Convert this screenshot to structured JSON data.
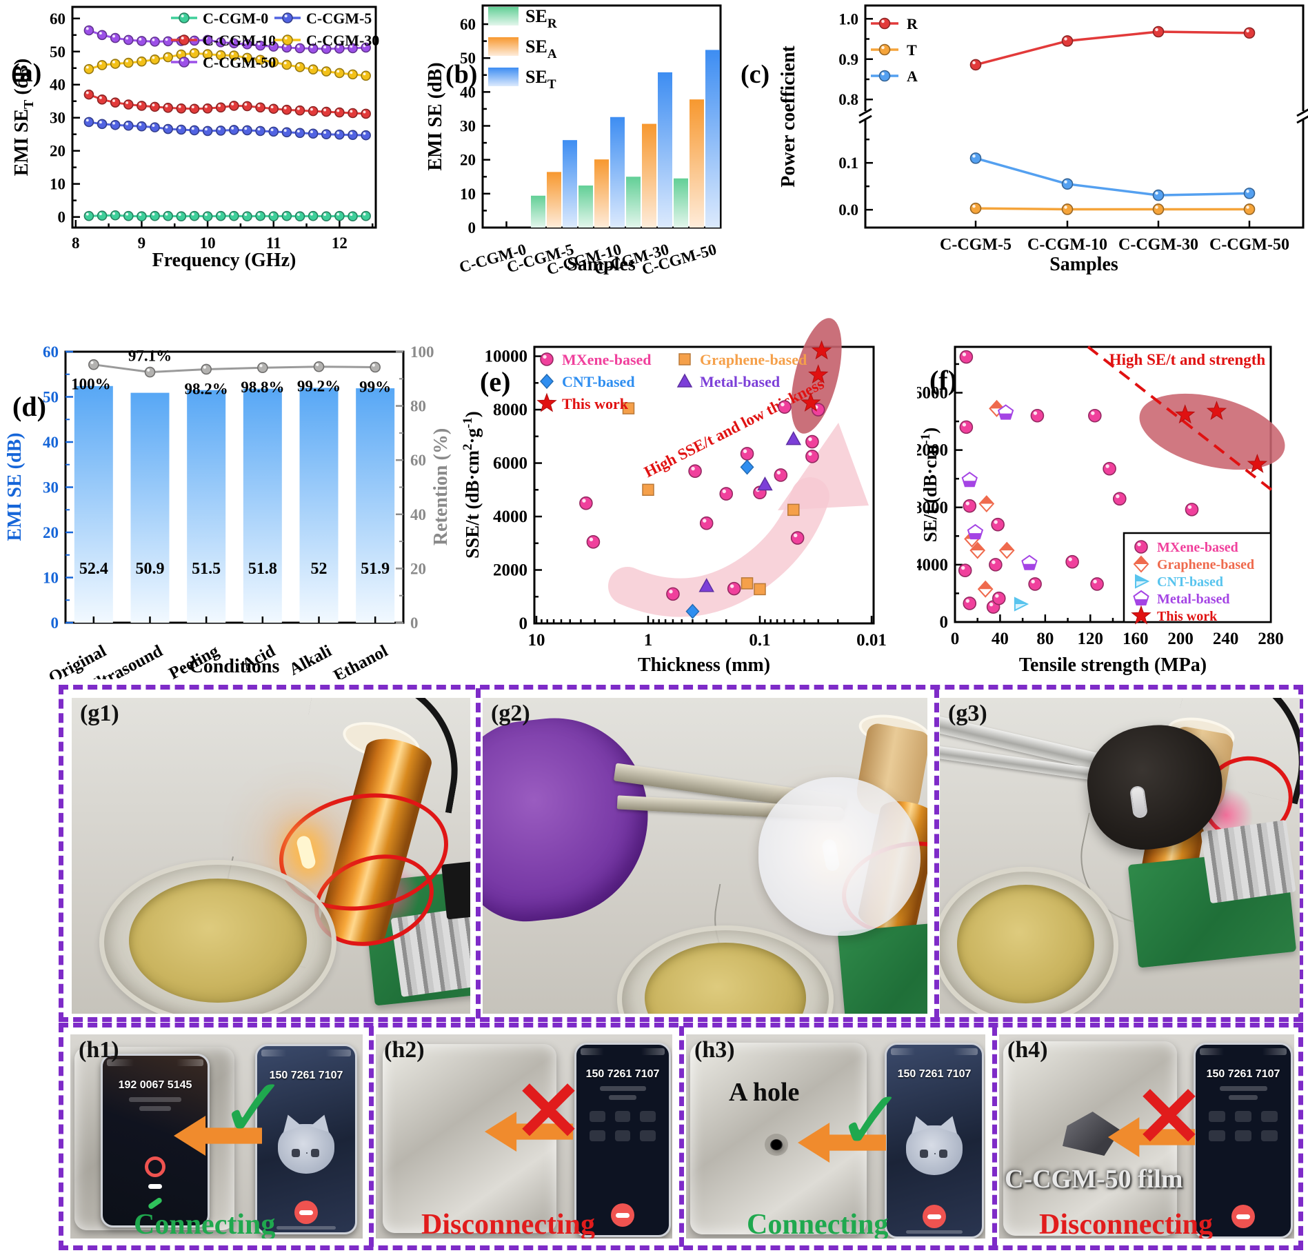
{
  "colors": {
    "connect_green": "#1fa84e",
    "disconnect_red": "#e11c1c",
    "arrow_orange": "#f08b2d",
    "border_purple": "#7e2bc8",
    "retention_gray": "#9a9a9a",
    "axis_blue": "#1565d8"
  },
  "chart_data": [
    {
      "id": "a",
      "type": "line",
      "letter": "(a)",
      "xlabel": "Frequency (GHz)",
      "ylabel": [
        {
          "t": "EMI SE"
        },
        {
          "t": "T",
          "sub": true
        },
        {
          "t": " (dB)"
        }
      ],
      "xlim": [
        7.95,
        12.55
      ],
      "ylim": [
        -3.2,
        63.5
      ],
      "xticks": [
        8,
        9,
        10,
        11,
        12
      ],
      "xticks_minor": [
        8.5,
        9.5,
        10.5,
        11.5,
        12.5
      ],
      "yticks": [
        0,
        10,
        20,
        30,
        40,
        50,
        60
      ],
      "yticks_minor": [
        5,
        15,
        25,
        35,
        45,
        55
      ],
      "x": [
        8.2,
        8.4,
        8.6,
        8.8,
        9.0,
        9.2,
        9.4,
        9.6,
        9.8,
        10.0,
        10.2,
        10.4,
        10.6,
        10.8,
        11.0,
        11.2,
        11.4,
        11.6,
        11.8,
        12.0,
        12.2,
        12.4
      ],
      "series": [
        {
          "name": "C-CGM-0",
          "color": "#3ecf9a",
          "values": [
            0.3,
            0.4,
            0.5,
            0.3,
            0.2,
            0.3,
            0.3,
            0.2,
            0.3,
            0.2,
            0.3,
            0.3,
            0.2,
            0.3,
            0.2,
            0.3,
            0.2,
            0.3,
            0.2,
            0.3,
            0.2,
            0.3
          ]
        },
        {
          "name": "C-CGM-5",
          "color": "#5163e2",
          "values": [
            28.7,
            28.1,
            27.8,
            27.6,
            27.4,
            27.1,
            26.6,
            26.4,
            26.2,
            26.0,
            26.1,
            26.3,
            26.2,
            26.0,
            25.8,
            25.6,
            25.4,
            25.2,
            25.0,
            24.9,
            24.8,
            24.7
          ]
        },
        {
          "name": "C-CGM-10",
          "color": "#e23a3a",
          "values": [
            37.0,
            35.5,
            34.6,
            34.0,
            33.6,
            33.3,
            33.0,
            32.8,
            32.7,
            32.8,
            33.1,
            33.6,
            33.5,
            33.1,
            32.7,
            32.4,
            32.2,
            32.0,
            31.8,
            31.6,
            31.4,
            31.2
          ]
        },
        {
          "name": "C-CGM-30",
          "color": "#f3c119",
          "values": [
            44.7,
            45.9,
            46.3,
            46.6,
            47.0,
            47.6,
            48.3,
            49.1,
            49.5,
            49.2,
            48.9,
            48.8,
            48.1,
            47.5,
            46.8,
            46.0,
            45.3,
            44.6,
            44.0,
            43.5,
            43.1,
            42.7
          ]
        },
        {
          "name": "C-CGM-50",
          "color": "#9c50e8",
          "values": [
            56.4,
            55.0,
            54.1,
            53.5,
            53.2,
            53.0,
            53.1,
            53.2,
            53.3,
            53.5,
            52.8,
            52.5,
            52.2,
            51.8,
            51.5,
            51.2,
            51.0,
            50.9,
            50.8,
            50.9,
            51.0,
            51.2
          ]
        }
      ]
    },
    {
      "id": "b",
      "type": "bar",
      "letter": "(b)",
      "xlabel": "Samples",
      "ylabel": [
        {
          "t": "EMI SE (dB)"
        }
      ],
      "categories": [
        "C-CGM-0",
        "C-CGM-5",
        "C-CGM-10",
        "C-CGM-30",
        "C-CGM-50"
      ],
      "ylim": [
        0,
        65.5
      ],
      "yticks": [
        0,
        10,
        20,
        30,
        40,
        50,
        60
      ],
      "yticks_minor": [
        5,
        15,
        25,
        35,
        45,
        55
      ],
      "series": [
        {
          "name": [
            {
              "t": "SE"
            },
            {
              "t": "R",
              "sub": true
            }
          ],
          "color": "#62cf96",
          "values": [
            0,
            9.4,
            12.4,
            15.0,
            14.5
          ]
        },
        {
          "name": [
            {
              "t": "SE"
            },
            {
              "t": "A",
              "sub": true
            }
          ],
          "color": "#f7982f",
          "values": [
            0,
            16.4,
            20.1,
            30.6,
            37.8
          ]
        },
        {
          "name": [
            {
              "t": "SE"
            },
            {
              "t": "T",
              "sub": true
            }
          ],
          "color": "#3d8df2",
          "values": [
            0,
            25.8,
            32.6,
            45.8,
            52.4
          ]
        }
      ]
    },
    {
      "id": "c",
      "type": "broken-line",
      "letter": "(c)",
      "xlabel": "Samples",
      "ylabel": [
        {
          "t": "Power coefficient"
        }
      ],
      "categories": [
        "C-CGM-5",
        "C-CGM-10",
        "C-CGM-30",
        "C-CGM-50"
      ],
      "yticks_upper": [
        0.8,
        0.9,
        1.0
      ],
      "yticks_upper_minor": [
        0.85,
        0.95
      ],
      "yticks_lower": [
        0.0,
        0.1
      ],
      "yticks_lower_minor": [
        0.05,
        0.15
      ],
      "series": [
        {
          "name": "R",
          "color": "#e23a3a",
          "segment": "upper",
          "values": [
            0.886,
            0.945,
            0.968,
            0.965
          ]
        },
        {
          "name": "T",
          "color": "#f5a43a",
          "segment": "lower",
          "values": [
            0.003,
            0.001,
            0.001,
            0.001
          ]
        },
        {
          "name": "A",
          "color": "#54a0f0",
          "segment": "lower",
          "values": [
            0.11,
            0.055,
            0.031,
            0.035
          ]
        }
      ]
    },
    {
      "id": "d",
      "type": "bar-line",
      "letter": "(d)",
      "xlabel": "Conditions",
      "ylabel_left": [
        {
          "t": "EMI SE (dB)"
        }
      ],
      "ylabel_right": [
        {
          "t": "Retention (%)"
        }
      ],
      "categories": [
        "Original",
        "Ultrasound",
        "Peeling",
        "Acid",
        "Alkali",
        "Ethanol"
      ],
      "bar_values": [
        52.4,
        50.9,
        51.5,
        51.8,
        52,
        51.9
      ],
      "bar_labels": [
        "52.4",
        "50.9",
        "51.5",
        "51.8",
        "52",
        "51.9"
      ],
      "retention_values": [
        100,
        97.1,
        98.2,
        98.8,
        99.2,
        99
      ],
      "retention_labels": [
        "100%",
        "97.1%",
        "98.2%",
        "98.8%",
        "99.2%",
        "99%"
      ],
      "retention_label_pos": [
        "below",
        "above",
        "below",
        "below",
        "below",
        "below"
      ],
      "yticks_left": [
        0,
        10,
        20,
        30,
        40,
        50,
        60
      ],
      "yticks_left_minor": [
        5,
        15,
        25,
        35,
        45,
        55
      ],
      "yticks_right": [
        0,
        20,
        40,
        60,
        80,
        100
      ],
      "yticks_right_minor": [
        10,
        30,
        50,
        70,
        90
      ],
      "bar_color_top": "#57a7f5",
      "bar_color_bottom": "#f2f9ff",
      "line_color": "#9a9a9a"
    },
    {
      "id": "e",
      "type": "scatter-logx",
      "letter": "(e)",
      "xlabel": "Thickness (mm)",
      "ylabel": [
        {
          "t": "SSE/t (dB·cm"
        },
        {
          "t": "2",
          "sup": true
        },
        {
          "t": "·g"
        },
        {
          "t": "-1",
          "sup": true
        },
        {
          "t": ")"
        }
      ],
      "xticks": [
        "10",
        "1",
        "0.1",
        "0.01"
      ],
      "yticks": [
        0,
        2000,
        4000,
        6000,
        8000,
        10000
      ],
      "annotation": "High SSE/t and low thickness",
      "series": [
        {
          "name": "MXene-based",
          "marker": "circle",
          "color": "#f0409c",
          "points": [
            [
              3.6,
              4500
            ],
            [
              3.1,
              3050
            ],
            [
              0.6,
              1100
            ],
            [
              0.38,
              5700
            ],
            [
              0.3,
              3750
            ],
            [
              0.2,
              4850
            ],
            [
              0.17,
              1300
            ],
            [
              0.13,
              6350
            ],
            [
              0.1,
              4900
            ],
            [
              0.065,
              5550
            ],
            [
              0.06,
              8100
            ],
            [
              0.046,
              3200
            ],
            [
              0.034,
              6800
            ],
            [
              0.034,
              6250
            ],
            [
              0.03,
              8000
            ]
          ]
        },
        {
          "name": "Graphene-based",
          "marker": "square",
          "color": "#f5a04a",
          "points": [
            [
              1.5,
              8050
            ],
            [
              1.0,
              5000
            ],
            [
              0.13,
              1500
            ],
            [
              0.1,
              1280
            ],
            [
              0.05,
              4250
            ]
          ]
        },
        {
          "name": "CNT-based",
          "marker": "diamond",
          "color": "#2f8ef0",
          "points": [
            [
              0.4,
              450
            ],
            [
              0.13,
              5850
            ]
          ]
        },
        {
          "name": "Metal-based",
          "marker": "triangle",
          "color": "#7c3fd8",
          "points": [
            [
              0.3,
              1400
            ],
            [
              0.09,
              5200
            ],
            [
              0.05,
              6900
            ]
          ]
        },
        {
          "name": "This work",
          "marker": "star",
          "color": "#e01111",
          "points": [
            [
              0.028,
              10200
            ],
            [
              0.03,
              9300
            ],
            [
              0.035,
              8250
            ]
          ]
        }
      ]
    },
    {
      "id": "f",
      "type": "scatter",
      "letter": "(f)",
      "xlabel": "Tensile strength (MPa)",
      "ylabel": [
        {
          "t": "SE/t (dB·cm"
        },
        {
          "t": "-1",
          "sup": true
        },
        {
          "t": ")"
        }
      ],
      "xlim": [
        0,
        280
      ],
      "xticks": [
        0,
        40,
        80,
        120,
        160,
        200,
        240,
        280
      ],
      "xticks_minor_step": 20,
      "yticks": [
        0,
        4000,
        8000,
        12000,
        16000
      ],
      "yticks_minor": [
        2000,
        6000,
        10000,
        14000,
        18000
      ],
      "annotation": "High SE/t and strength",
      "series": [
        {
          "name": "MXene-based",
          "marker": "circle",
          "color": "#f0409c",
          "points": [
            [
              10,
              18500
            ],
            [
              10,
              13600
            ],
            [
              73,
              14400
            ],
            [
              124,
              14400
            ],
            [
              137,
              10700
            ],
            [
              146,
              8600
            ],
            [
              210,
              7850
            ],
            [
              13,
              8100
            ],
            [
              38,
              6800
            ],
            [
              9,
              3600
            ],
            [
              36,
              4000
            ],
            [
              104,
              4200
            ],
            [
              71,
              2650
            ],
            [
              126,
              2650
            ],
            [
              13,
              1300
            ],
            [
              34,
              1050
            ],
            [
              39,
              1650
            ]
          ]
        },
        {
          "name": "Graphene-based",
          "marker": "half-diamond",
          "color": "#ef6a4d",
          "points": [
            [
              37,
              14900
            ],
            [
              28,
              8250
            ],
            [
              15,
              5800
            ],
            [
              20,
              5000
            ],
            [
              46,
              5000
            ],
            [
              27,
              2300
            ]
          ]
        },
        {
          "name": "CNT-based",
          "marker": "triangle-right",
          "color": "#58c4ee",
          "points": [
            [
              58,
              1250
            ]
          ]
        },
        {
          "name": "Metal-based",
          "marker": "half-pentagon",
          "color": "#a444e4",
          "points": [
            [
              45,
              14600
            ],
            [
              13,
              9900
            ],
            [
              18,
              6250
            ],
            [
              66,
              4100
            ]
          ]
        },
        {
          "name": "This work",
          "marker": "star",
          "color": "#e01111",
          "points": [
            [
              204,
              14450
            ],
            [
              232,
              14700
            ],
            [
              268,
              11000
            ]
          ]
        }
      ]
    }
  ],
  "photos": {
    "g1": {
      "label": "(g1)"
    },
    "g2": {
      "label": "(g2)"
    },
    "g3": {
      "label": "(g3)"
    },
    "h1": {
      "label": "(h1)",
      "caller_number": "192 0067 5145",
      "callee_number": "150 7261 7107",
      "status": "Connecting"
    },
    "h2": {
      "label": "(h2)",
      "number": "150 7261 7107",
      "status": "Disconnecting"
    },
    "h3": {
      "label": "(h3)",
      "number": "150 7261 7107",
      "status": "Connecting",
      "hole_label": "A hole"
    },
    "h4": {
      "label": "(h4)",
      "number": "150 7261 7107",
      "status": "Disconnecting",
      "film_label": "C-CGM-50 film"
    }
  }
}
